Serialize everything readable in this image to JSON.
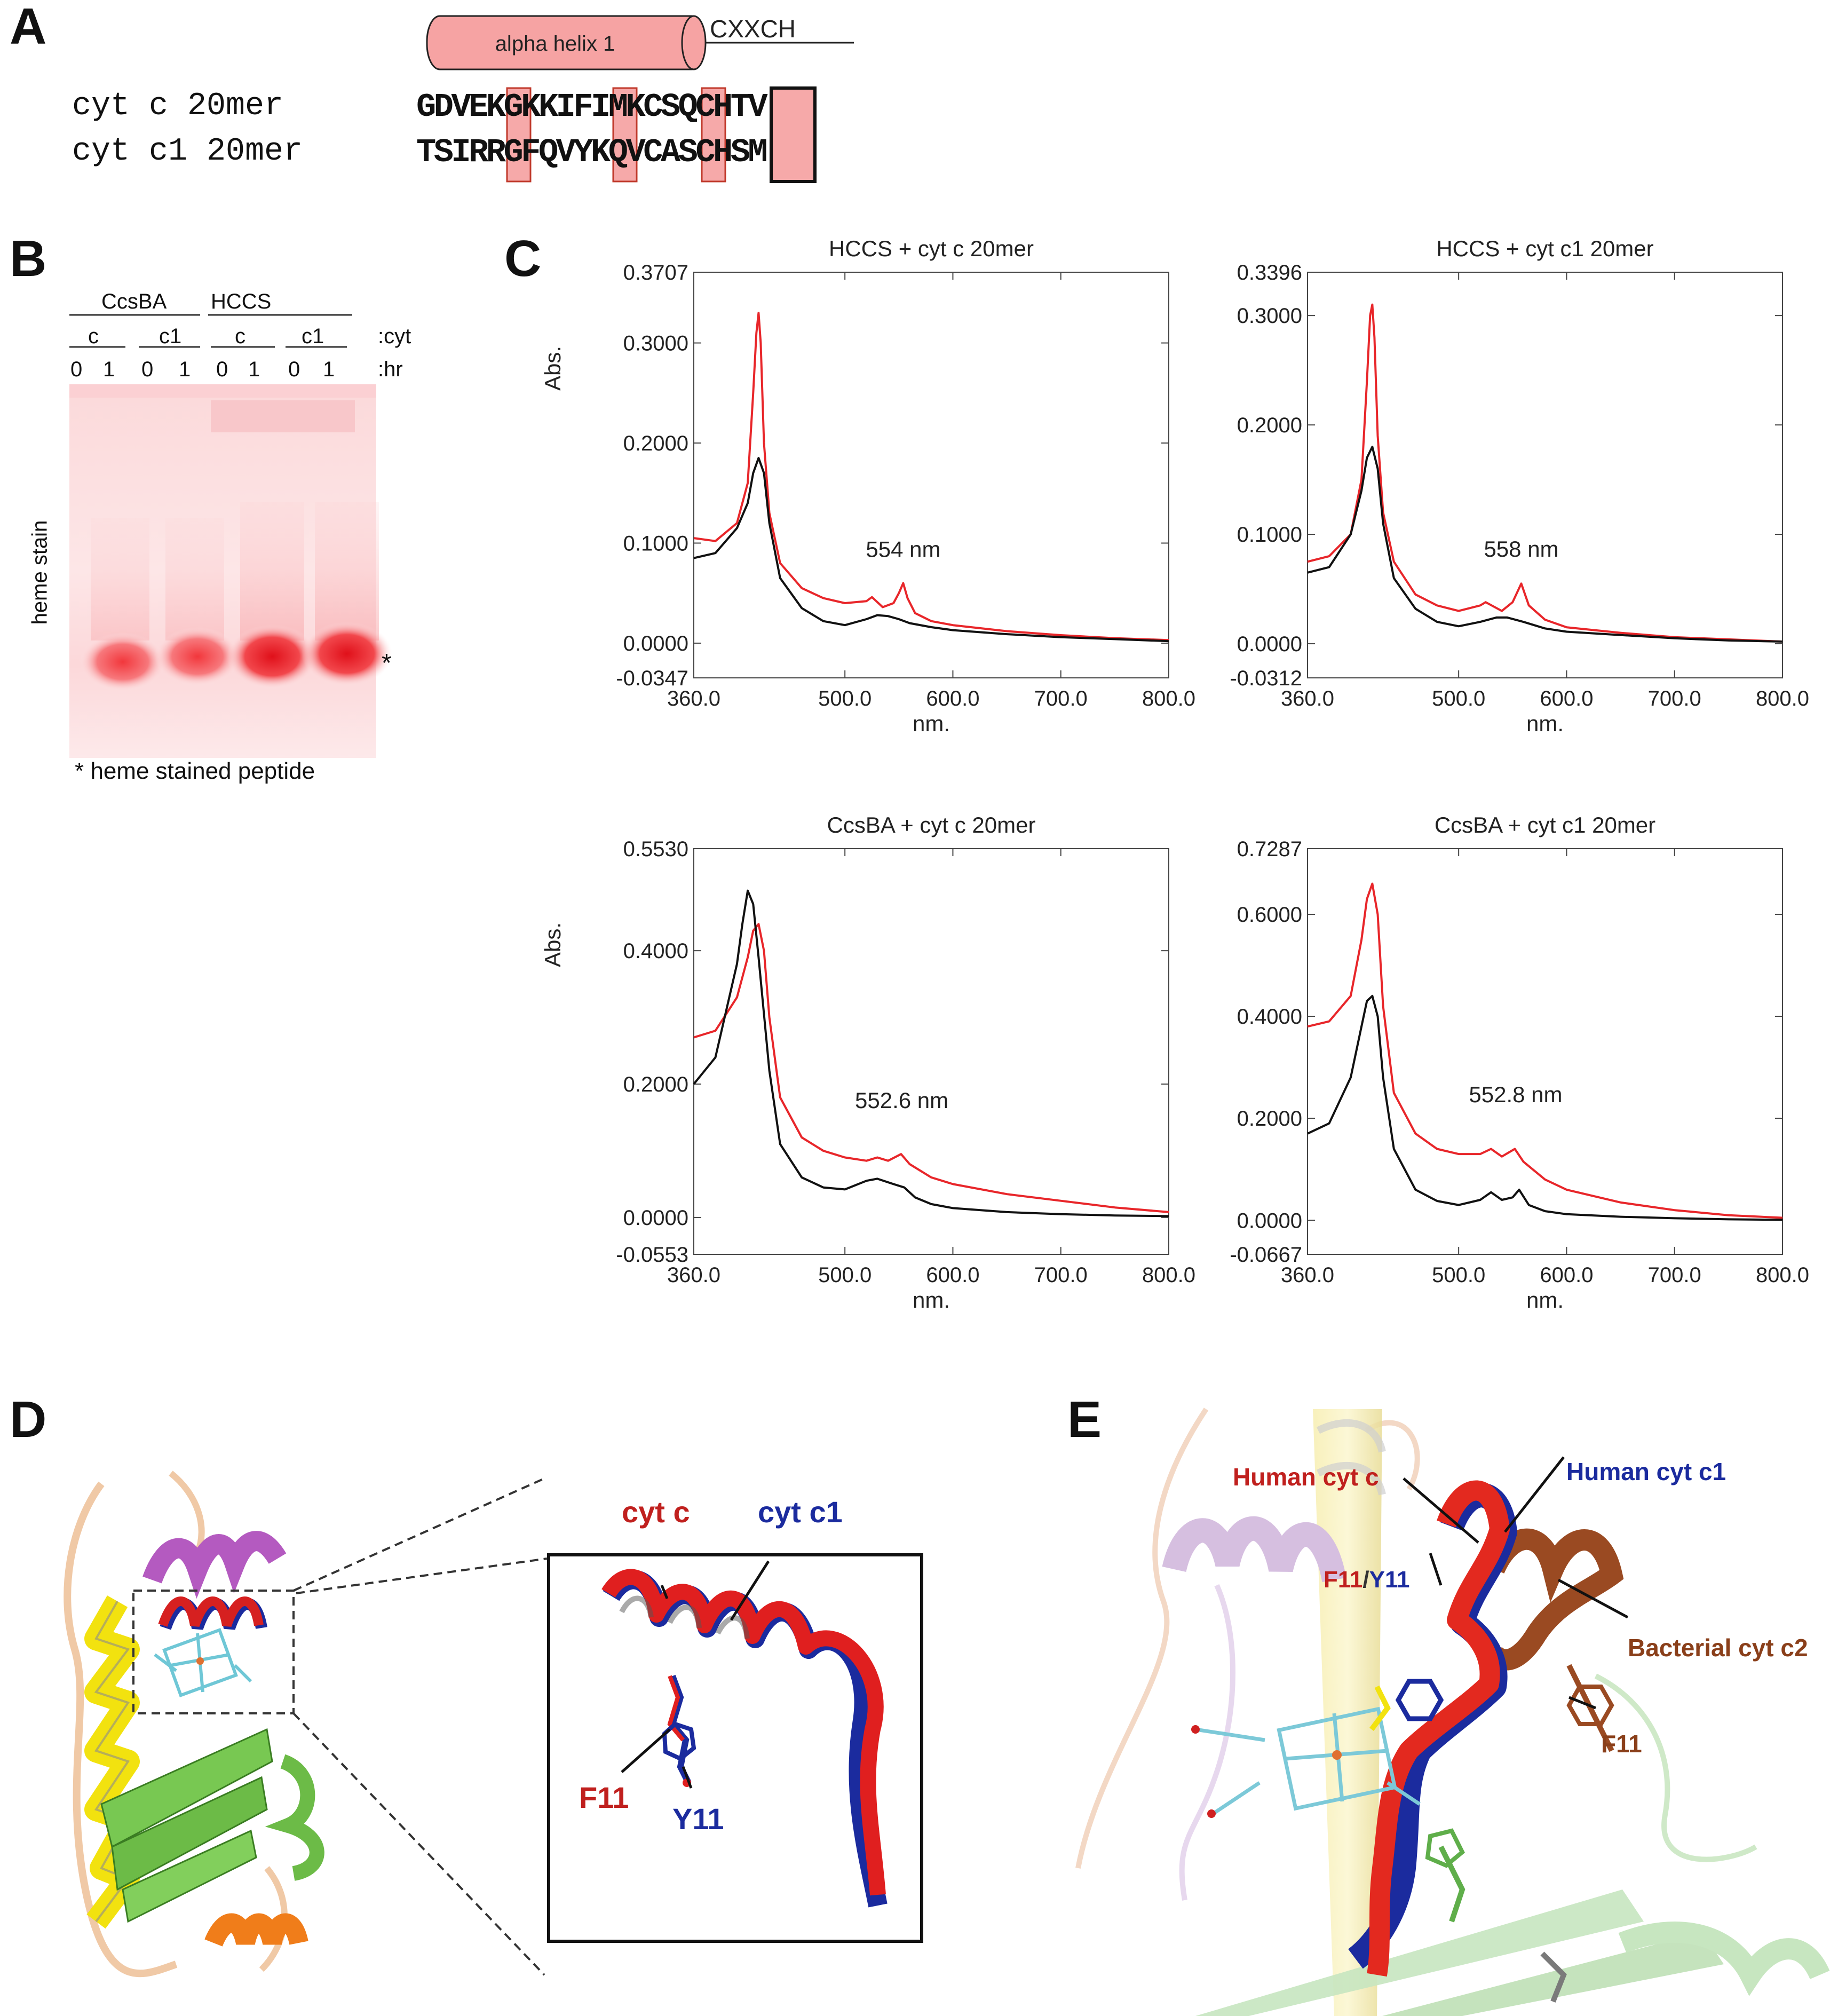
{
  "panels": {
    "A": "A",
    "B": "B",
    "C": "C",
    "D": "D",
    "E": "E"
  },
  "panelA": {
    "helix_label": "alpha helix 1",
    "motif_label": "CXXCH",
    "rows": [
      {
        "label": "cyt c 20mer",
        "sequence": "GDVEKGKKIFIMKCSQCHTV"
      },
      {
        "label": "cyt c1 20mer",
        "sequence": "TSIRRGFQVYKQVCASCHSM"
      }
    ],
    "highlight_colors": {
      "box": "#f4a9a9",
      "border": "#c0392b"
    }
  },
  "panelB": {
    "groups": [
      "CcsBA",
      "HCCS"
    ],
    "cyt_labels": [
      "c",
      "c1",
      "c",
      "c1"
    ],
    "hr_labels": [
      "0",
      "1",
      "0",
      "1",
      "0",
      "1",
      "0",
      "1"
    ],
    "cyt_suffix": ":cyt",
    "hr_suffix": ":hr",
    "side_label": "heme stain",
    "star": "*",
    "footnote": "* heme stained peptide"
  },
  "chart_data": [
    {
      "type": "line",
      "title": "HCCS + cyt c 20mer",
      "xlabel": "nm.",
      "ylabel": "Abs.",
      "xlim": [
        360,
        800
      ],
      "ylim": [
        -0.0347,
        0.3707
      ],
      "xticks": [
        "360.0",
        "500.0",
        "600.0",
        "700.0",
        "800.0"
      ],
      "yticks": [
        "0.3707",
        "0.3000",
        "0.2000",
        "0.1000",
        "0.0000",
        "-0.0347"
      ],
      "annotation": "554 nm",
      "series": [
        {
          "color": "#e8262a",
          "x": [
            360,
            380,
            400,
            410,
            415,
            418,
            420,
            422,
            425,
            430,
            440,
            460,
            480,
            500,
            520,
            525,
            535,
            545,
            550,
            554,
            558,
            565,
            580,
            600,
            650,
            700,
            750,
            800
          ],
          "y": [
            0.105,
            0.102,
            0.12,
            0.16,
            0.25,
            0.31,
            0.33,
            0.3,
            0.2,
            0.13,
            0.08,
            0.055,
            0.045,
            0.04,
            0.042,
            0.046,
            0.036,
            0.04,
            0.05,
            0.06,
            0.045,
            0.03,
            0.022,
            0.018,
            0.012,
            0.008,
            0.005,
            0.003
          ]
        },
        {
          "color": "#111111",
          "x": [
            360,
            380,
            400,
            410,
            415,
            420,
            425,
            430,
            440,
            460,
            480,
            500,
            520,
            530,
            540,
            550,
            560,
            580,
            600,
            650,
            700,
            750,
            800
          ],
          "y": [
            0.085,
            0.09,
            0.115,
            0.14,
            0.17,
            0.185,
            0.17,
            0.12,
            0.065,
            0.035,
            0.022,
            0.018,
            0.024,
            0.028,
            0.027,
            0.024,
            0.02,
            0.016,
            0.013,
            0.009,
            0.006,
            0.004,
            0.002
          ]
        }
      ]
    },
    {
      "type": "line",
      "title": "HCCS + cyt c1 20mer",
      "xlabel": "nm.",
      "ylabel": "",
      "xlim": [
        360,
        800
      ],
      "ylim": [
        -0.0312,
        0.3396
      ],
      "xticks": [
        "360.0",
        "500.0",
        "600.0",
        "700.0",
        "800.0"
      ],
      "yticks": [
        "0.3396",
        "0.3000",
        "0.2000",
        "0.1000",
        "0.0000",
        "-0.0312"
      ],
      "annotation": "558 nm",
      "series": [
        {
          "color": "#e8262a",
          "x": [
            360,
            380,
            400,
            410,
            415,
            418,
            420,
            422,
            425,
            430,
            440,
            460,
            480,
            500,
            520,
            525,
            540,
            550,
            558,
            565,
            580,
            600,
            650,
            700,
            750,
            800
          ],
          "y": [
            0.075,
            0.08,
            0.1,
            0.15,
            0.24,
            0.3,
            0.31,
            0.28,
            0.19,
            0.12,
            0.075,
            0.045,
            0.035,
            0.03,
            0.035,
            0.038,
            0.03,
            0.038,
            0.055,
            0.035,
            0.022,
            0.015,
            0.01,
            0.006,
            0.004,
            0.002
          ]
        },
        {
          "color": "#111111",
          "x": [
            360,
            380,
            400,
            410,
            415,
            420,
            425,
            430,
            440,
            460,
            480,
            500,
            520,
            535,
            545,
            560,
            580,
            600,
            650,
            700,
            750,
            800
          ],
          "y": [
            0.065,
            0.07,
            0.1,
            0.14,
            0.17,
            0.18,
            0.16,
            0.11,
            0.06,
            0.032,
            0.02,
            0.016,
            0.02,
            0.024,
            0.024,
            0.02,
            0.014,
            0.011,
            0.008,
            0.005,
            0.003,
            0.002
          ]
        }
      ]
    },
    {
      "type": "line",
      "title": "CcsBA + cyt c 20mer",
      "xlabel": "nm.",
      "ylabel": "Abs.",
      "xlim": [
        360,
        800
      ],
      "ylim": [
        -0.0553,
        0.553
      ],
      "xticks": [
        "360.0",
        "500.0",
        "600.0",
        "700.0",
        "800.0"
      ],
      "yticks": [
        "0.5530",
        "0.4000",
        "0.2000",
        "0.0000",
        "-0.0553"
      ],
      "annotation": "552.6 nm",
      "series": [
        {
          "color": "#e8262a",
          "x": [
            360,
            380,
            400,
            410,
            415,
            420,
            425,
            430,
            440,
            460,
            480,
            500,
            520,
            530,
            540,
            552,
            560,
            580,
            600,
            650,
            700,
            750,
            800
          ],
          "y": [
            0.27,
            0.28,
            0.33,
            0.39,
            0.43,
            0.44,
            0.4,
            0.3,
            0.18,
            0.12,
            0.1,
            0.09,
            0.085,
            0.09,
            0.085,
            0.095,
            0.08,
            0.06,
            0.05,
            0.035,
            0.025,
            0.015,
            0.008
          ]
        },
        {
          "color": "#111111",
          "x": [
            360,
            380,
            400,
            405,
            410,
            415,
            420,
            430,
            440,
            460,
            480,
            500,
            520,
            530,
            545,
            555,
            565,
            580,
            600,
            650,
            700,
            750,
            800
          ],
          "y": [
            0.2,
            0.24,
            0.38,
            0.44,
            0.49,
            0.47,
            0.39,
            0.22,
            0.11,
            0.06,
            0.045,
            0.042,
            0.055,
            0.058,
            0.05,
            0.045,
            0.03,
            0.02,
            0.014,
            0.008,
            0.005,
            0.003,
            0.002
          ]
        }
      ]
    },
    {
      "type": "line",
      "title": "CcsBA + cyt c1 20mer",
      "xlabel": "nm.",
      "ylabel": "",
      "xlim": [
        360,
        800
      ],
      "ylim": [
        -0.0667,
        0.7287
      ],
      "xticks": [
        "360.0",
        "500.0",
        "600.0",
        "700.0",
        "800.0"
      ],
      "yticks": [
        "0.7287",
        "0.6000",
        "0.4000",
        "0.2000",
        "0.0000",
        "-0.0667"
      ],
      "annotation": "552.8 nm",
      "series": [
        {
          "color": "#e8262a",
          "x": [
            360,
            380,
            400,
            410,
            415,
            420,
            425,
            430,
            440,
            460,
            480,
            500,
            520,
            530,
            540,
            552,
            560,
            580,
            600,
            650,
            700,
            750,
            800
          ],
          "y": [
            0.38,
            0.39,
            0.44,
            0.55,
            0.63,
            0.66,
            0.6,
            0.42,
            0.25,
            0.17,
            0.14,
            0.13,
            0.13,
            0.14,
            0.125,
            0.14,
            0.115,
            0.08,
            0.06,
            0.035,
            0.02,
            0.01,
            0.005
          ]
        },
        {
          "color": "#111111",
          "x": [
            360,
            380,
            400,
            410,
            415,
            420,
            425,
            430,
            440,
            460,
            480,
            500,
            520,
            530,
            540,
            550,
            556,
            565,
            580,
            600,
            650,
            700,
            750,
            800
          ],
          "y": [
            0.17,
            0.19,
            0.28,
            0.38,
            0.43,
            0.44,
            0.4,
            0.28,
            0.14,
            0.06,
            0.038,
            0.03,
            0.04,
            0.055,
            0.04,
            0.045,
            0.06,
            0.03,
            0.018,
            0.012,
            0.007,
            0.004,
            0.002,
            0.001
          ]
        }
      ]
    }
  ],
  "panelD": {
    "inset_labels": {
      "cyt_c": "cyt c",
      "cyt_c1": "cyt c1",
      "F11": "F11",
      "Y11": "Y11"
    },
    "colors": {
      "red": "#c0201e",
      "blue": "#1b2b9e"
    }
  },
  "panelE": {
    "labels": {
      "human_c": "Human cyt c",
      "human_c1": "Human cyt c1",
      "F11Y11_a": "F11",
      "F11Y11_sep": "/",
      "F11Y11_b": "Y11",
      "bacterial": "Bacterial cyt c2",
      "F11": "F11"
    },
    "colors": {
      "red": "#c0201e",
      "blue": "#1b2b9e",
      "brown": "#8a3f1a"
    }
  }
}
